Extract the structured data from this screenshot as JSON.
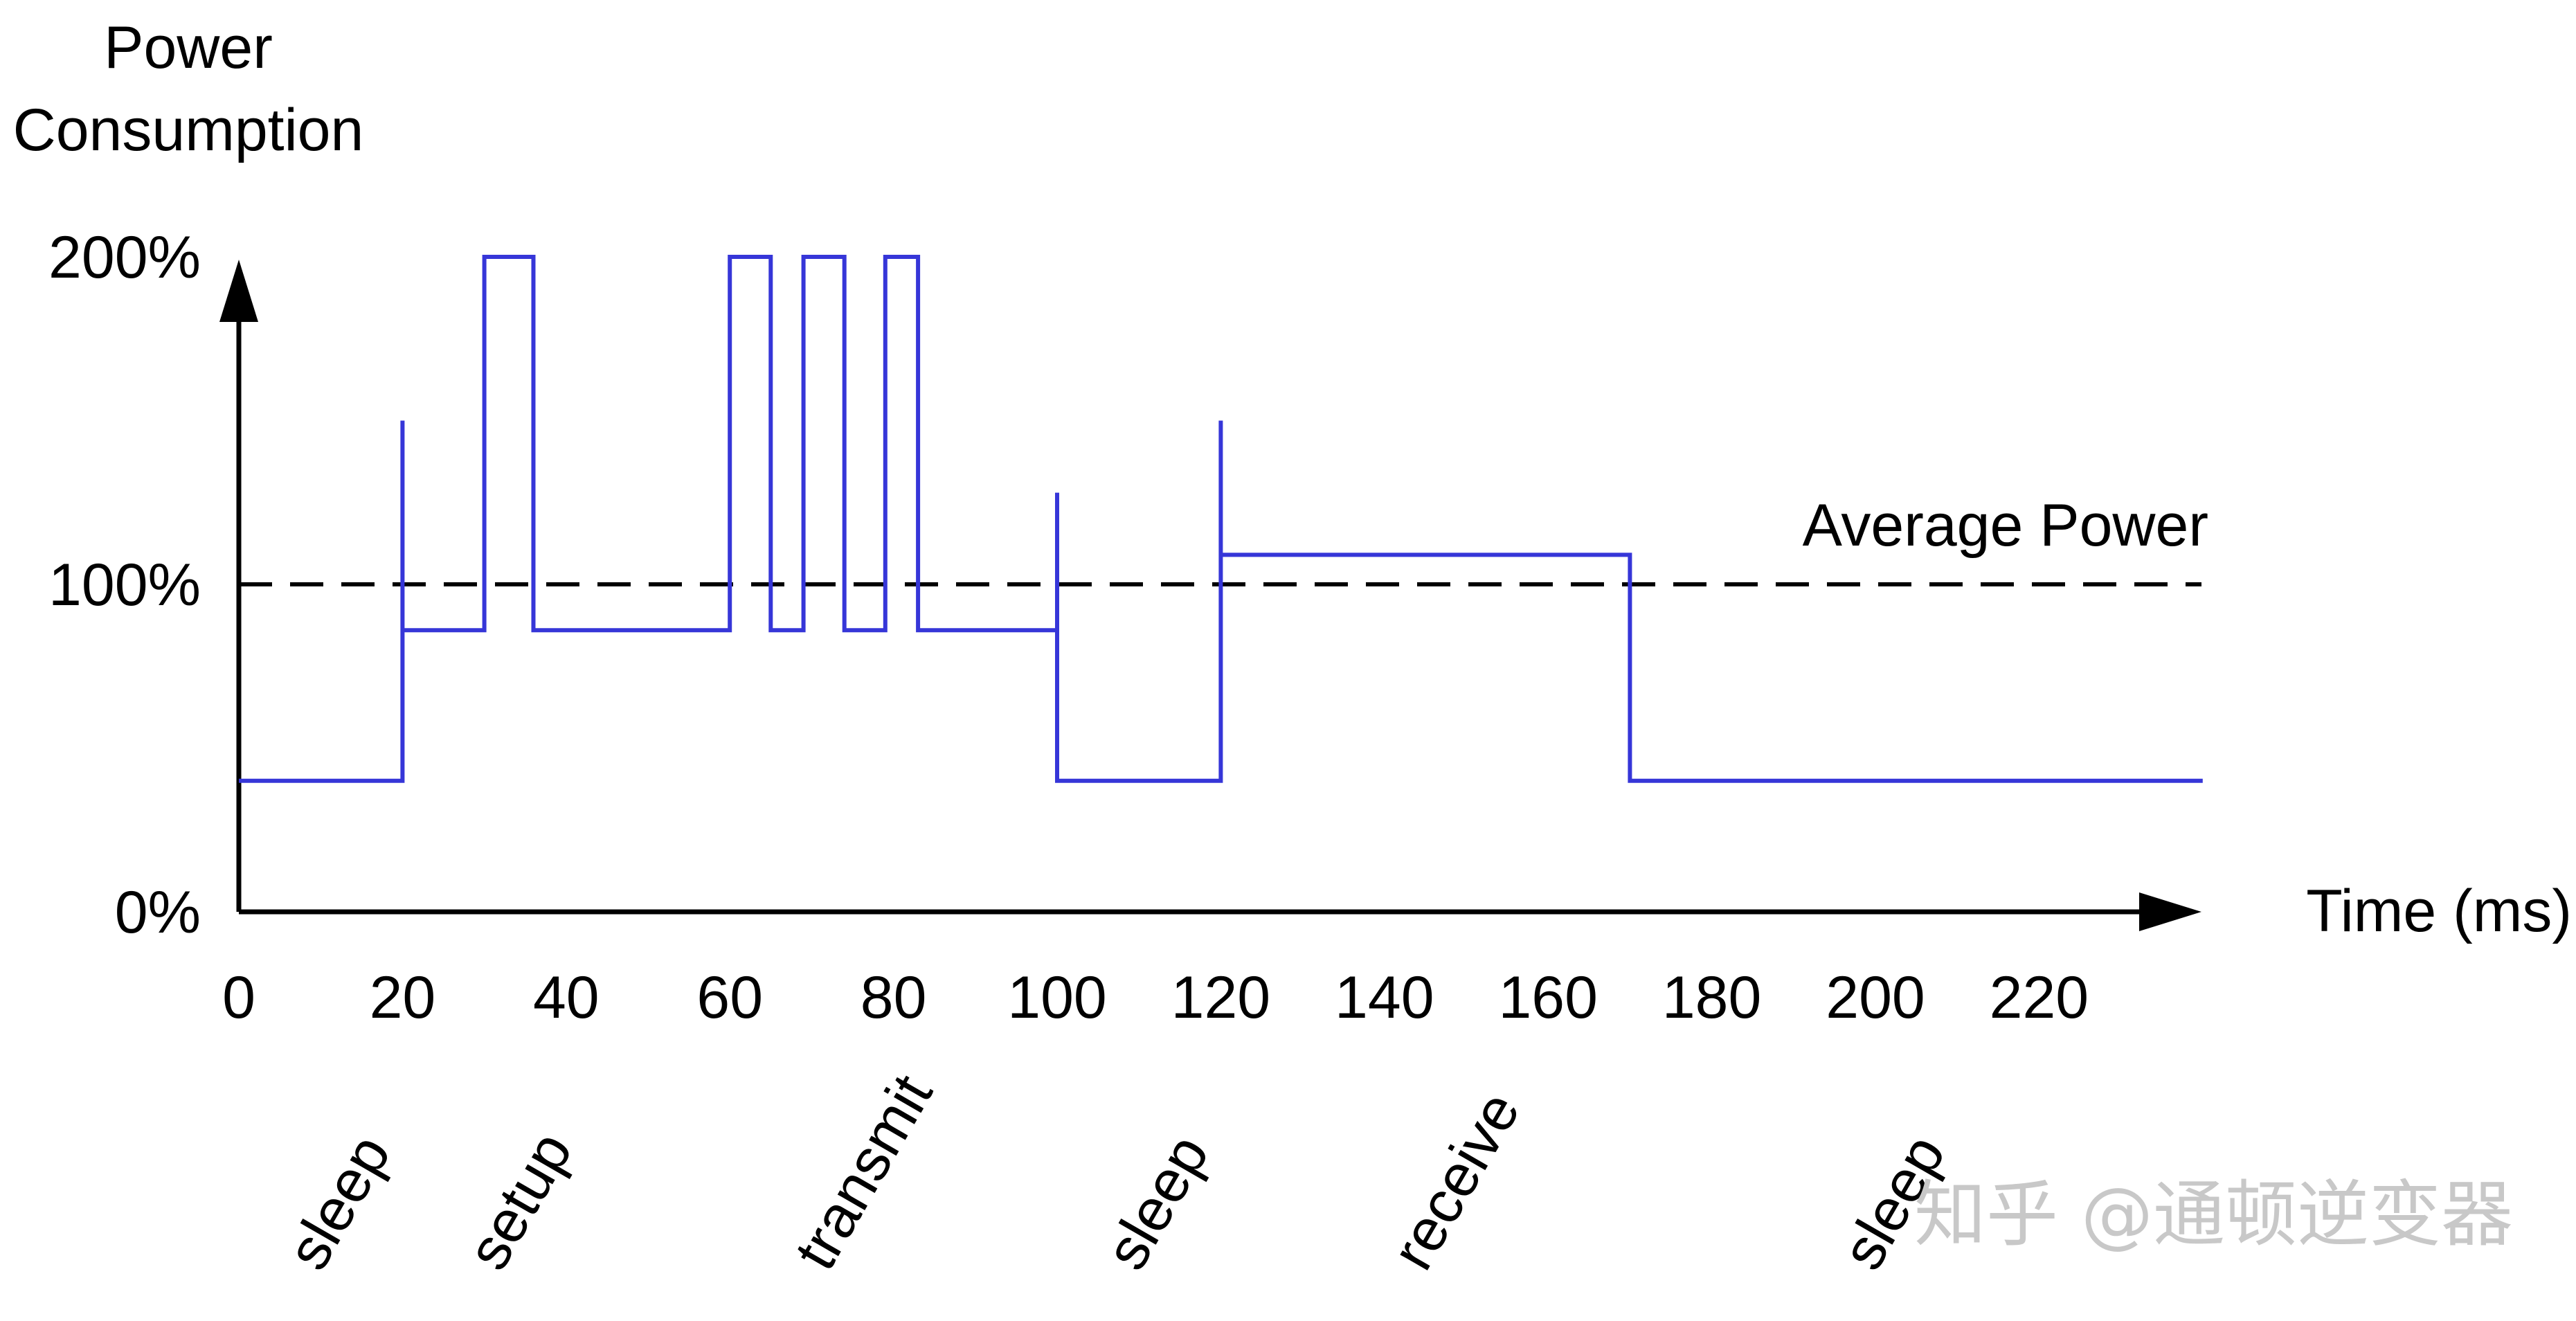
{
  "chart_data": {
    "type": "line",
    "title": "",
    "ylabel_lines": [
      "Power",
      "Consumption"
    ],
    "xlabel": "Time (ms)",
    "xlim": [
      0,
      240
    ],
    "ylim": [
      0,
      200
    ],
    "x_ticks": [
      0,
      20,
      40,
      60,
      80,
      100,
      120,
      140,
      160,
      180,
      200,
      220
    ],
    "y_ticks": [
      {
        "value": 0,
        "label": "0%"
      },
      {
        "value": 100,
        "label": "100%"
      },
      {
        "value": 200,
        "label": "200%"
      }
    ],
    "series": [
      {
        "color": "#3636d8",
        "step_points": [
          [
            0,
            40
          ],
          [
            20,
            40
          ],
          [
            20,
            150
          ],
          [
            20,
            86
          ],
          [
            30,
            86
          ],
          [
            30,
            200
          ],
          [
            36,
            200
          ],
          [
            36,
            86
          ],
          [
            60,
            86
          ],
          [
            60,
            200
          ],
          [
            65,
            200
          ],
          [
            65,
            86
          ],
          [
            69,
            86
          ],
          [
            69,
            200
          ],
          [
            74,
            200
          ],
          [
            74,
            86
          ],
          [
            79,
            86
          ],
          [
            79,
            200
          ],
          [
            83,
            200
          ],
          [
            83,
            86
          ],
          [
            100,
            86
          ],
          [
            100,
            128
          ],
          [
            100,
            40
          ],
          [
            120,
            40
          ],
          [
            120,
            150
          ],
          [
            120,
            109
          ],
          [
            170,
            109
          ],
          [
            170,
            40
          ],
          [
            240,
            40
          ]
        ]
      }
    ],
    "reference_line": {
      "label": "Average Power",
      "y": 100,
      "style": "dashed",
      "color": "#000000"
    },
    "phase_labels": [
      {
        "label": "sleep",
        "x": 10
      },
      {
        "label": "setup",
        "x": 32
      },
      {
        "label": "transmit",
        "x": 72
      },
      {
        "label": "sleep",
        "x": 110
      },
      {
        "label": "receive",
        "x": 145
      },
      {
        "label": "sleep",
        "x": 200
      }
    ],
    "grid": false,
    "legend": "none"
  },
  "watermark": "知乎 @通顿逆变器"
}
